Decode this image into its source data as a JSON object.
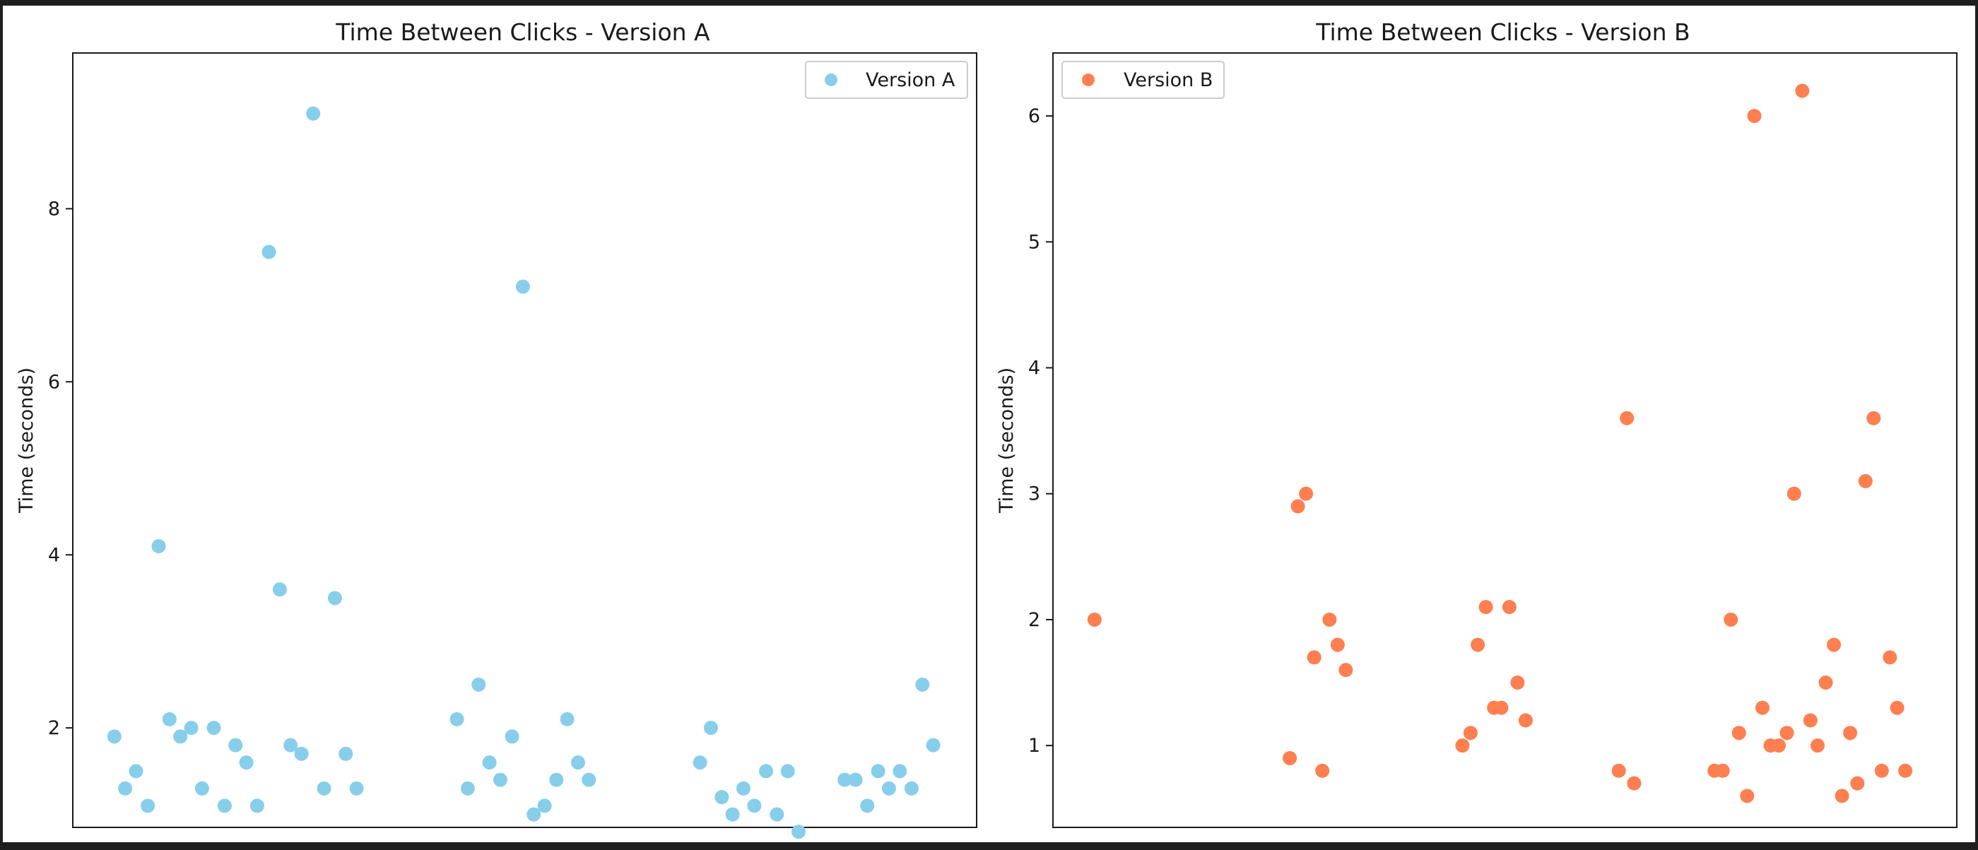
{
  "colors": {
    "frame": "#1e1e1e",
    "figure_bg": "#ffffff",
    "axes_border": "#1a1a1a",
    "legend_border": "#cccccc",
    "version_a": "#87ceeb",
    "version_b": "#ff7f50"
  },
  "chart_data": [
    {
      "type": "scatter",
      "title": "Time Between Clicks - Version A",
      "xlabel": "",
      "ylabel": "Time (seconds)",
      "ylim": [
        0.85,
        9.8
      ],
      "xlim": [
        0,
        100
      ],
      "yticks": [
        2,
        4,
        6,
        8
      ],
      "xticks": [],
      "grid": false,
      "legend_position": "top-right",
      "series": [
        {
          "name": "Version A",
          "color": "#87ceeb",
          "points": [
            {
              "x": 4.6,
              "y": 1.9
            },
            {
              "x": 5.8,
              "y": 1.3
            },
            {
              "x": 7.0,
              "y": 1.5
            },
            {
              "x": 8.3,
              "y": 1.1
            },
            {
              "x": 9.5,
              "y": 4.1
            },
            {
              "x": 10.7,
              "y": 2.1
            },
            {
              "x": 11.9,
              "y": 1.9
            },
            {
              "x": 13.1,
              "y": 2.0
            },
            {
              "x": 14.3,
              "y": 1.3
            },
            {
              "x": 15.6,
              "y": 2.0
            },
            {
              "x": 16.8,
              "y": 1.1
            },
            {
              "x": 18.0,
              "y": 1.8
            },
            {
              "x": 19.2,
              "y": 1.6
            },
            {
              "x": 20.4,
              "y": 1.1
            },
            {
              "x": 21.7,
              "y": 7.5
            },
            {
              "x": 22.9,
              "y": 3.6
            },
            {
              "x": 24.1,
              "y": 1.8
            },
            {
              "x": 25.3,
              "y": 1.7
            },
            {
              "x": 26.6,
              "y": 9.1
            },
            {
              "x": 27.8,
              "y": 1.3
            },
            {
              "x": 29.0,
              "y": 3.5
            },
            {
              "x": 30.2,
              "y": 1.7
            },
            {
              "x": 31.4,
              "y": 1.3
            },
            {
              "x": 42.5,
              "y": 2.1
            },
            {
              "x": 43.7,
              "y": 1.3
            },
            {
              "x": 44.9,
              "y": 2.5
            },
            {
              "x": 46.1,
              "y": 1.6
            },
            {
              "x": 47.3,
              "y": 1.4
            },
            {
              "x": 48.6,
              "y": 1.9
            },
            {
              "x": 49.8,
              "y": 7.1
            },
            {
              "x": 51.0,
              "y": 1.0
            },
            {
              "x": 52.2,
              "y": 1.1
            },
            {
              "x": 53.5,
              "y": 1.4
            },
            {
              "x": 54.7,
              "y": 2.1
            },
            {
              "x": 55.9,
              "y": 1.6
            },
            {
              "x": 57.1,
              "y": 1.4
            },
            {
              "x": 69.4,
              "y": 1.6
            },
            {
              "x": 70.6,
              "y": 2.0
            },
            {
              "x": 71.8,
              "y": 1.2
            },
            {
              "x": 73.0,
              "y": 1.0
            },
            {
              "x": 74.2,
              "y": 1.3
            },
            {
              "x": 75.4,
              "y": 1.1
            },
            {
              "x": 76.7,
              "y": 1.5
            },
            {
              "x": 77.9,
              "y": 1.0
            },
            {
              "x": 79.1,
              "y": 1.5
            },
            {
              "x": 80.3,
              "y": 0.8
            },
            {
              "x": 85.4,
              "y": 1.4
            },
            {
              "x": 86.6,
              "y": 1.4
            },
            {
              "x": 87.9,
              "y": 1.1
            },
            {
              "x": 89.1,
              "y": 1.5
            },
            {
              "x": 90.3,
              "y": 1.3
            },
            {
              "x": 91.5,
              "y": 1.5
            },
            {
              "x": 92.8,
              "y": 1.3
            },
            {
              "x": 94.0,
              "y": 2.5
            },
            {
              "x": 95.2,
              "y": 1.8
            }
          ]
        }
      ]
    },
    {
      "type": "scatter",
      "title": "Time Between Clicks - Version B",
      "xlabel": "",
      "ylabel": "Time (seconds)",
      "ylim": [
        0.35,
        6.5
      ],
      "xlim": [
        0,
        100
      ],
      "yticks": [
        1,
        2,
        3,
        4,
        5,
        6
      ],
      "xticks": [],
      "grid": false,
      "legend_position": "top-left",
      "series": [
        {
          "name": "Version B",
          "color": "#ff7f50",
          "points": [
            {
              "x": 4.6,
              "y": 2.0
            },
            {
              "x": 26.2,
              "y": 0.9
            },
            {
              "x": 27.1,
              "y": 2.9
            },
            {
              "x": 28.0,
              "y": 3.0
            },
            {
              "x": 28.9,
              "y": 1.7
            },
            {
              "x": 29.8,
              "y": 0.8
            },
            {
              "x": 30.6,
              "y": 2.0
            },
            {
              "x": 31.5,
              "y": 1.8
            },
            {
              "x": 32.4,
              "y": 1.6
            },
            {
              "x": 45.3,
              "y": 1.0
            },
            {
              "x": 46.2,
              "y": 1.1
            },
            {
              "x": 47.0,
              "y": 1.8
            },
            {
              "x": 47.9,
              "y": 2.1
            },
            {
              "x": 48.8,
              "y": 1.3
            },
            {
              "x": 49.6,
              "y": 1.3
            },
            {
              "x": 50.5,
              "y": 2.1
            },
            {
              "x": 51.4,
              "y": 1.5
            },
            {
              "x": 52.3,
              "y": 1.2
            },
            {
              "x": 62.6,
              "y": 0.8
            },
            {
              "x": 63.5,
              "y": 3.6
            },
            {
              "x": 64.3,
              "y": 0.7
            },
            {
              "x": 73.2,
              "y": 0.8
            },
            {
              "x": 74.1,
              "y": 0.8
            },
            {
              "x": 75.0,
              "y": 2.0
            },
            {
              "x": 75.9,
              "y": 1.1
            },
            {
              "x": 76.8,
              "y": 0.6
            },
            {
              "x": 77.6,
              "y": 6.0
            },
            {
              "x": 78.5,
              "y": 1.3
            },
            {
              "x": 79.4,
              "y": 1.0
            },
            {
              "x": 80.3,
              "y": 1.0
            },
            {
              "x": 81.2,
              "y": 1.1
            },
            {
              "x": 82.0,
              "y": 3.0
            },
            {
              "x": 82.9,
              "y": 6.2
            },
            {
              "x": 83.8,
              "y": 1.2
            },
            {
              "x": 84.6,
              "y": 1.0
            },
            {
              "x": 85.5,
              "y": 1.5
            },
            {
              "x": 86.4,
              "y": 1.8
            },
            {
              "x": 87.3,
              "y": 0.6
            },
            {
              "x": 88.2,
              "y": 1.1
            },
            {
              "x": 89.0,
              "y": 0.7
            },
            {
              "x": 89.9,
              "y": 3.1
            },
            {
              "x": 90.8,
              "y": 3.6
            },
            {
              "x": 91.7,
              "y": 0.8
            },
            {
              "x": 92.6,
              "y": 1.7
            },
            {
              "x": 93.4,
              "y": 1.3
            },
            {
              "x": 94.3,
              "y": 0.8
            }
          ]
        }
      ]
    }
  ]
}
